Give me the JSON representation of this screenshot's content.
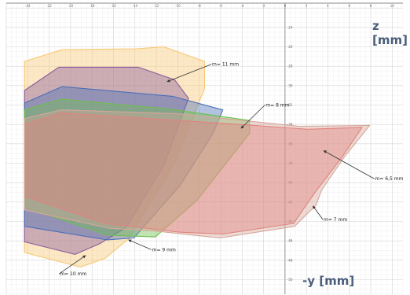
{
  "chart_data": {
    "type": "area",
    "xlabel": "-y [mm]",
    "ylabel": "z [mm]",
    "x_ticks": [
      -24,
      -22,
      -20,
      -18,
      -16,
      -14,
      -12,
      -10,
      -8,
      -6,
      -4,
      -2,
      0,
      2,
      4,
      6,
      8,
      10
    ],
    "y_ticks": [
      -24,
      -26,
      -28,
      -30,
      -32,
      -34,
      -36,
      -38,
      -40,
      -42,
      -44,
      -46,
      -48,
      -50
    ],
    "xlim": [
      -26,
      11
    ],
    "ylim": [
      -51.5,
      -21.5
    ],
    "grid": true,
    "series": [
      {
        "name": "m= 11 mm",
        "color": "#f7c873",
        "points": [
          [
            -24.3,
            -27.5
          ],
          [
            -20.8,
            -26.3
          ],
          [
            -13.9,
            -26.2
          ],
          [
            -11.3,
            -26.0
          ],
          [
            -7.5,
            -27.5
          ],
          [
            -7.5,
            -30.3
          ],
          [
            -10.4,
            -38.2
          ],
          [
            -14.6,
            -45.8
          ],
          [
            -16.8,
            -47.8
          ],
          [
            -19.1,
            -48.7
          ],
          [
            -24.3,
            -47.2
          ]
        ]
      },
      {
        "name": "m= 10 mm",
        "color": "#8a5a9e",
        "points": [
          [
            -24.3,
            -30.5
          ],
          [
            -21.1,
            -28.1
          ],
          [
            -13.7,
            -28.1
          ],
          [
            -10.3,
            -29.4
          ],
          [
            -9.0,
            -31.3
          ],
          [
            -11.3,
            -38.2
          ],
          [
            -14.8,
            -44.6
          ],
          [
            -17.3,
            -46.3
          ],
          [
            -19.6,
            -47.4
          ],
          [
            -24.3,
            -46.1
          ]
        ]
      },
      {
        "name": "m= 9 mm",
        "color": "#4a6fb8",
        "points": [
          [
            -24.3,
            -31.8
          ],
          [
            -20.8,
            -30.1
          ],
          [
            -10.5,
            -31.1
          ],
          [
            -5.8,
            -32.5
          ],
          [
            -6.7,
            -34.9
          ],
          [
            -9.8,
            -40.3
          ],
          [
            -14.1,
            -45.7
          ],
          [
            -16.6,
            -45.9
          ],
          [
            -24.3,
            -44.5
          ]
        ]
      },
      {
        "name": "m= 8 mm",
        "color": "#6ebf4e",
        "points": [
          [
            -24.3,
            -32.5
          ],
          [
            -20.9,
            -31.4
          ],
          [
            -10.9,
            -32.4
          ],
          [
            -3.3,
            -33.6
          ],
          [
            -3.3,
            -34.9
          ],
          [
            -8.2,
            -41.8
          ],
          [
            -12.1,
            -45.6
          ],
          [
            -16.6,
            -45.4
          ],
          [
            -24.3,
            -42.5
          ]
        ]
      },
      {
        "name": "m= 6,5 mm",
        "color": "#e86a6a",
        "points": [
          [
            -24.3,
            -34.0
          ],
          [
            -20.9,
            -32.8
          ],
          [
            -14.0,
            -33.3
          ],
          [
            -4.2,
            -34.0
          ],
          [
            2.1,
            -34.5
          ],
          [
            7.2,
            -34.3
          ],
          [
            5.3,
            -37.4
          ],
          [
            2.8,
            -41.0
          ],
          [
            0.8,
            -44.2
          ],
          [
            -5.8,
            -45.3
          ],
          [
            -9.9,
            -45.1
          ],
          [
            -16.8,
            -44.2
          ],
          [
            -24.3,
            -41.4
          ]
        ]
      },
      {
        "name": "m= 7 mm",
        "color": "#d6a79a",
        "points": [
          [
            -24.3,
            -33.4
          ],
          [
            -20.9,
            -32.5
          ],
          [
            -10.0,
            -32.9
          ],
          [
            1.3,
            -34.2
          ],
          [
            7.9,
            -34.1
          ],
          [
            5.5,
            -37.4
          ],
          [
            3.4,
            -40.8
          ],
          [
            2.9,
            -42.3
          ],
          [
            0.9,
            -44.5
          ],
          [
            -6.1,
            -45.7
          ],
          [
            -12.0,
            -45.0
          ],
          [
            -16.4,
            -44.7
          ],
          [
            -24.3,
            -42.8
          ]
        ]
      }
    ],
    "annotations": [
      {
        "text": "m= 11 mm",
        "label_at": [
          -6.8,
          -27.8
        ],
        "arrow_to": [
          -11.0,
          -29.6
        ]
      },
      {
        "text": "m= 8 mm",
        "label_at": [
          -1.8,
          -32.0
        ],
        "arrow_to": [
          -4.1,
          -34.4
        ]
      },
      {
        "text": "m= 6,5 mm",
        "label_at": [
          8.4,
          -39.6
        ],
        "arrow_to": [
          3.6,
          -36.7
        ]
      },
      {
        "text": "m= 7 mm",
        "label_at": [
          3.6,
          -43.8
        ],
        "arrow_to": [
          2.6,
          -42.4
        ]
      },
      {
        "text": "m= 9 mm",
        "label_at": [
          -12.4,
          -46.9
        ],
        "arrow_to": [
          -14.6,
          -45.9
        ]
      },
      {
        "text": "m= 10 mm",
        "label_at": [
          -21.0,
          -49.4
        ],
        "arrow_to": [
          -18.6,
          -47.5
        ]
      }
    ]
  }
}
